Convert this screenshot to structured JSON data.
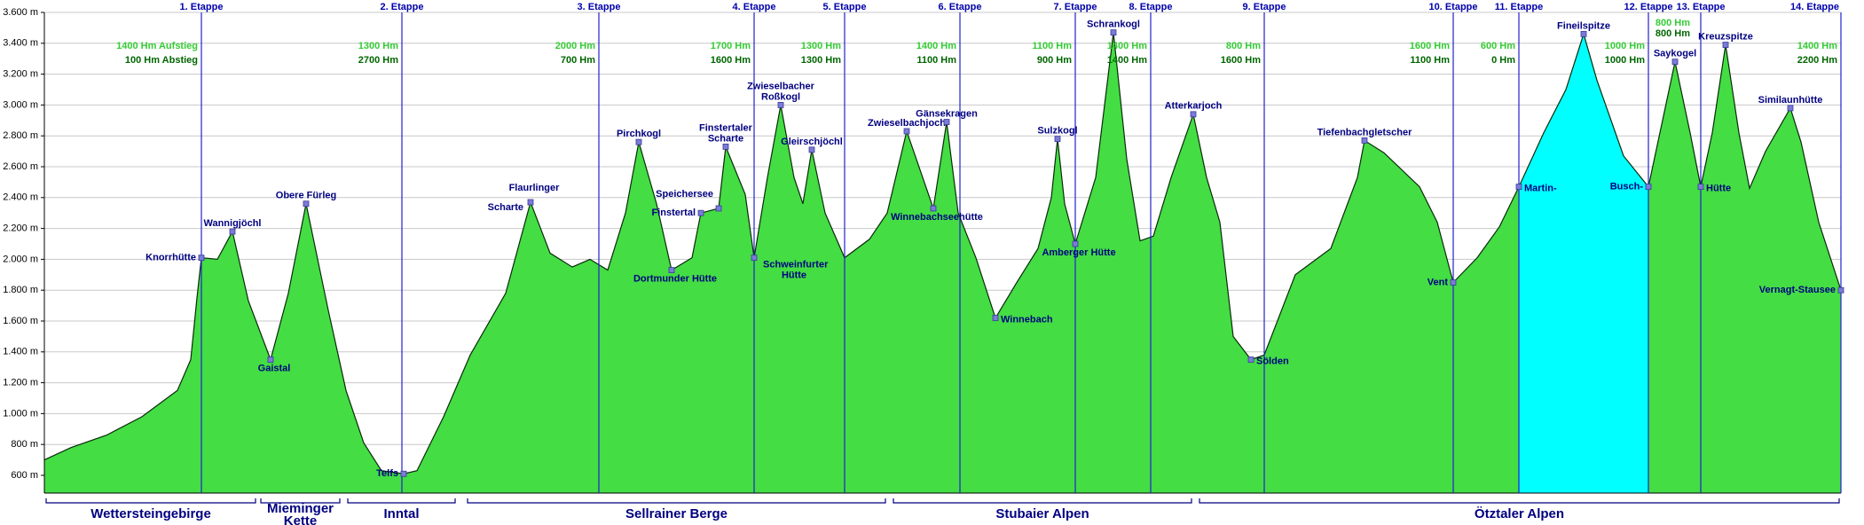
{
  "chart_data": {
    "type": "area",
    "color": "#44dd44",
    "outline": "#0a2a0a",
    "ylim": [
      485,
      3600
    ],
    "yticks": [
      {
        "value": 600,
        "label": "600 m"
      },
      {
        "value": 800,
        "label": "800 m"
      },
      {
        "value": 1000,
        "label": "1.000 m"
      },
      {
        "value": 1200,
        "label": "1.200 m"
      },
      {
        "value": 1400,
        "label": "1.400 m"
      },
      {
        "value": 1600,
        "label": "1.600 m"
      },
      {
        "value": 1800,
        "label": "1.800 m"
      },
      {
        "value": 2000,
        "label": "2.000 m"
      },
      {
        "value": 2200,
        "label": "2.200 m"
      },
      {
        "value": 2400,
        "label": "2.400 m"
      },
      {
        "value": 2600,
        "label": "2.600 m"
      },
      {
        "value": 2800,
        "label": "2.800 m"
      },
      {
        "value": 3000,
        "label": "3.000 m"
      },
      {
        "value": 3200,
        "label": "3.200 m"
      },
      {
        "value": 3400,
        "label": "3.400 m"
      },
      {
        "value": 3600,
        "label": "3.600 m"
      }
    ],
    "grid": true,
    "xlim": [
      0,
      405
    ],
    "x": [
      0,
      6,
      14,
      22,
      30,
      33,
      34.4,
      35.4,
      39,
      42.4,
      46,
      51,
      55,
      59,
      64,
      68,
      72,
      76,
      81,
      84,
      90,
      96,
      104,
      109.6,
      114,
      119,
      123,
      127,
      131,
      134,
      138,
      141.4,
      146,
      148,
      152,
      153.6,
      158,
      160,
      163,
      166,
      169,
      171,
      173,
      176,
      180.4,
      186,
      190,
      194.4,
      198,
      200.4,
      203.4,
      206,
      210,
      214.4,
      219,
      224,
      227,
      228.4,
      230,
      232.4,
      237,
      241,
      244,
      247,
      250,
      254,
      259,
      262,
      265,
      268,
      272,
      275,
      282,
      290,
      296,
      297.6,
      302,
      310,
      314,
      317.6,
      323,
      328,
      332.4,
      338,
      343,
      347,
      350,
      356,
      361.6,
      367.6,
      371,
      373.4,
      376,
      379,
      382,
      384.4,
      388,
      393.6,
      396,
      400,
      405
    ],
    "values": [
      700,
      780,
      860,
      980,
      1150,
      1350,
      1750,
      2010,
      2000,
      2180,
      1730,
      1350,
      1780,
      2360,
      1670,
      1150,
      810,
      630,
      610,
      630,
      980,
      1380,
      1780,
      2370,
      2040,
      1950,
      2000,
      1930,
      2300,
      2760,
      2360,
      1930,
      2010,
      2300,
      2330,
      2730,
      2420,
      2010,
      2530,
      3000,
      2530,
      2360,
      2710,
      2300,
      2010,
      2130,
      2300,
      2830,
      2530,
      2330,
      2890,
      2300,
      2010,
      1620,
      1840,
      2070,
      2400,
      2780,
      2360,
      2100,
      2530,
      3470,
      2650,
      2120,
      2150,
      2530,
      2940,
      2530,
      2240,
      1500,
      1350,
      1380,
      1900,
      2070,
      2530,
      2770,
      2690,
      2470,
      2240,
      1850,
      2010,
      2210,
      2470,
      2820,
      3100,
      3460,
      3160,
      2670,
      2470,
      3280,
      2820,
      2470,
      2820,
      3390,
      2820,
      2460,
      2700,
      2980,
      2760,
      2240,
      1800
    ],
    "highlight": {
      "from": 332.4,
      "to": 361.6,
      "color": "#00ffff"
    },
    "stages": [
      {
        "label": "1. Etappe",
        "x": 35.4,
        "ascent": "1400 Hm Aufstieg",
        "descent": "100 Hm Abstieg"
      },
      {
        "label": "2. Etappe",
        "x": 80.6,
        "ascent": "1300 Hm",
        "descent": "2700 Hm"
      },
      {
        "label": "3. Etappe",
        "x": 125,
        "ascent": "2000 Hm",
        "descent": "700 Hm"
      },
      {
        "label": "4. Etappe",
        "x": 160,
        "ascent": "1700 Hm",
        "descent": "1600 Hm"
      },
      {
        "label": "5. Etappe",
        "x": 180.4,
        "ascent": "1300 Hm",
        "descent": "1300 Hm"
      },
      {
        "label": "6. Etappe",
        "x": 206.4,
        "ascent": "1400 Hm",
        "descent": "1100 Hm"
      },
      {
        "label": "7. Etappe",
        "x": 232.4,
        "ascent": "1100 Hm",
        "descent": "900 Hm"
      },
      {
        "label": "8. Etappe",
        "x": 249.4,
        "ascent": "1400 Hm",
        "descent": "1400 Hm"
      },
      {
        "label": "9. Etappe",
        "x": 275,
        "ascent": "800 Hm",
        "descent": "1600 Hm"
      },
      {
        "label": "10. Etappe",
        "x": 317.6,
        "ascent": "1600 Hm",
        "descent": "1100 Hm"
      },
      {
        "label": "11. Etappe",
        "x": 332.4,
        "ascent": "600 Hm",
        "descent": "0 Hm"
      },
      {
        "label": "12. Etappe",
        "x": 361.6,
        "ascent": "1000 Hm",
        "descent": "1000 Hm"
      },
      {
        "label": "13. Etappe",
        "x": 373.4,
        "ascent": "800 Hm",
        "descent": "800 Hm"
      },
      {
        "label": "14. Etappe",
        "x": 405,
        "ascent": "1400 Hm",
        "descent": "2200 Hm"
      }
    ],
    "annotations": [
      {
        "label": "Knorrhütte",
        "x": 35.4,
        "y": 2010
      },
      {
        "label": "Wannigjöchl",
        "x": 42.4,
        "y": 2180
      },
      {
        "label": "Gaistal",
        "x": 51,
        "y": 1350
      },
      {
        "label": "Obere Fürleg",
        "x": 59,
        "y": 2360
      },
      {
        "label": "Telfs",
        "x": 81,
        "y": 610
      },
      {
        "label": [
          "Flaurlinger",
          "Scharte"
        ],
        "x": 109.6,
        "y": 2370
      },
      {
        "label": "Pirchkogl",
        "x": 134,
        "y": 2760
      },
      {
        "label": "Dortmunder Hütte",
        "x": 141.4,
        "y": 1930
      },
      {
        "label": "Finstertal",
        "x": 148,
        "y": 2300
      },
      {
        "label": "Speichersee",
        "x": 152,
        "y": 2330
      },
      {
        "label": [
          "Finstertaler",
          "Scharte"
        ],
        "x": 153.6,
        "y": 2730
      },
      {
        "label": [
          "Schweinfurter",
          "Hütte"
        ],
        "x": 160,
        "y": 2010
      },
      {
        "label": [
          "Zwieselbacher",
          "Roßkogl"
        ],
        "x": 166,
        "y": 3000
      },
      {
        "label": "Gleirschjöchl",
        "x": 173,
        "y": 2710
      },
      {
        "label": "Zwieselbachjoch",
        "x": 194.4,
        "y": 2830
      },
      {
        "label": "Winnebachseehütte",
        "x": 200.4,
        "y": 2330
      },
      {
        "label": "Gänsekragen",
        "x": 203.4,
        "y": 2890
      },
      {
        "label": "Winnebach",
        "x": 214.4,
        "y": 1620
      },
      {
        "label": "Sulzkogl",
        "x": 228.4,
        "y": 2780
      },
      {
        "label": "Amberger Hütte",
        "x": 232.4,
        "y": 2100
      },
      {
        "label": "Schrankogl",
        "x": 241,
        "y": 3470
      },
      {
        "label": "Atterkarjoch",
        "x": 259,
        "y": 2940
      },
      {
        "label": "Sölden",
        "x": 272,
        "y": 1350
      },
      {
        "label": "Tiefenbachgletscher",
        "x": 297.6,
        "y": 2770
      },
      {
        "label": "Vent",
        "x": 317.6,
        "y": 1850
      },
      {
        "label": "Martin-",
        "x": 332.4,
        "y": 2470
      },
      {
        "label": "Fineilspitze",
        "x": 347,
        "y": 3460
      },
      {
        "label": "Busch-",
        "x": 361.6,
        "y": 2470
      },
      {
        "label": "Saykogel",
        "x": 367.6,
        "y": 3280
      },
      {
        "label": "Hütte",
        "x": 373.4,
        "y": 2470
      },
      {
        "label": "Kreuzspitze",
        "x": 379,
        "y": 3390
      },
      {
        "label": "Similaunhütte",
        "x": 393.6,
        "y": 2980
      },
      {
        "label": "Vernagt-Stausee",
        "x": 405,
        "y": 1800
      }
    ],
    "regions": [
      {
        "label": "Wettersteingebirge",
        "from": 0,
        "to": 48
      },
      {
        "label": [
          "Mieminger",
          "Kette"
        ],
        "from": 48.4,
        "to": 67
      },
      {
        "label": "Inntal",
        "from": 68,
        "to": 93
      },
      {
        "label": "Sellrainer Berge",
        "from": 95,
        "to": 190
      },
      {
        "label": "Stubaier Alpen",
        "from": 191,
        "to": 259
      },
      {
        "label": "Ötztaler Alpen",
        "from": 260,
        "to": 405
      }
    ]
  }
}
